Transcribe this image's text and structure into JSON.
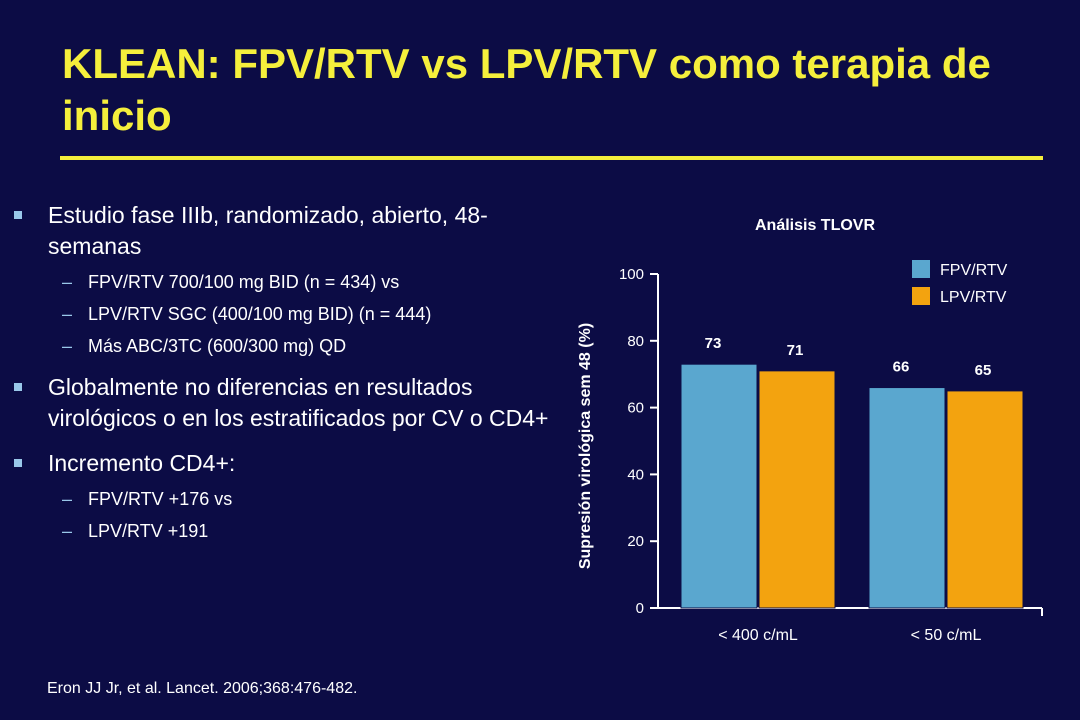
{
  "slide": {
    "title": "KLEAN: FPV/RTV vs LPV/RTV como terapia de inicio",
    "bullets": [
      {
        "text": "Estudio fase IIIb, randomizado, abierto, 48-semanas",
        "sub": [
          "FPV/RTV 700/100 mg BID (n = 434) vs",
          "LPV/RTV SGC (400/100 mg BID) (n = 444)",
          "Más ABC/3TC (600/300 mg) QD"
        ]
      },
      {
        "text": "Globalmente no diferencias en resultados virológicos o en los estratificados por CV o CD4+",
        "sub": []
      },
      {
        "text": "Incremento CD4+:",
        "sub": [
          "FPV/RTV +176 vs",
          "LPV/RTV +191"
        ]
      }
    ],
    "citation": "Eron JJ Jr, et al. Lancet. 2006;368:476-482."
  },
  "colors": {
    "background": "#0c0c45",
    "title": "#f5ef3c",
    "fpv": "#5aa7cf",
    "lpv": "#f3a30f",
    "bullet_mark": "#9ac8ea"
  },
  "chart_data": {
    "type": "bar",
    "title": "Análisis TLOVR",
    "xlabel": "",
    "ylabel": "Supresión virológica sem 48 (%)",
    "categories": [
      "< 400 c/mL",
      "< 50 c/mL"
    ],
    "series": [
      {
        "name": "FPV/RTV",
        "values": [
          73,
          66
        ],
        "color": "#5aa7cf"
      },
      {
        "name": "LPV/RTV",
        "values": [
          71,
          65
        ],
        "color": "#f3a30f"
      }
    ],
    "ylim": [
      0,
      100
    ],
    "yticks": [
      0,
      20,
      40,
      60,
      80,
      100
    ],
    "data_labels": true,
    "legend": "top-right",
    "grid": false
  }
}
